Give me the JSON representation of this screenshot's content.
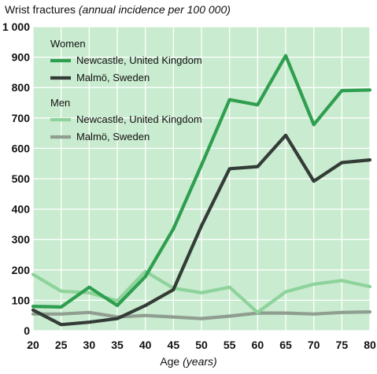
{
  "chart_data": {
    "type": "line",
    "title": "Wrist fractures",
    "subtitle": "(annual incidence per 100 000)",
    "xlabel": "Age",
    "xlabel_unit": "(years)",
    "x": [
      20,
      25,
      30,
      35,
      40,
      45,
      50,
      55,
      60,
      65,
      70,
      75,
      80
    ],
    "xlim": [
      20,
      80
    ],
    "ylim": [
      0,
      1000
    ],
    "yticks": [
      0,
      100,
      200,
      300,
      400,
      500,
      600,
      700,
      800,
      900,
      1000
    ],
    "yticklabels": [
      "0",
      "100",
      "200",
      "300",
      "400",
      "500",
      "600",
      "700",
      "800",
      "900",
      "1 000"
    ],
    "grid": true,
    "legend_position": "top-left",
    "legend_groups": [
      {
        "title": "Women",
        "series": [
          0,
          1
        ]
      },
      {
        "title": "Men",
        "series": [
          2,
          3
        ]
      }
    ],
    "series": [
      {
        "name": "Newcastle, United Kingdom",
        "group": "Women",
        "color": "#2e9e4f",
        "values": [
          80,
          78,
          143,
          83,
          178,
          335,
          545,
          760,
          743,
          905,
          678,
          790,
          792
        ]
      },
      {
        "name": "Malmö, Sweden",
        "group": "Women",
        "color": "#333c36",
        "values": [
          68,
          20,
          28,
          40,
          83,
          135,
          345,
          533,
          540,
          643,
          492,
          553,
          562
        ]
      },
      {
        "name": "Newcastle, United Kingdom",
        "group": "Men",
        "color": "#8ed39b",
        "values": [
          185,
          130,
          125,
          98,
          195,
          140,
          125,
          143,
          60,
          128,
          153,
          165,
          145
        ]
      },
      {
        "name": "Malmö, Sweden",
        "group": "Men",
        "color": "#8f9e90",
        "values": [
          55,
          55,
          60,
          45,
          50,
          45,
          40,
          48,
          58,
          58,
          55,
          60,
          62
        ]
      }
    ]
  }
}
